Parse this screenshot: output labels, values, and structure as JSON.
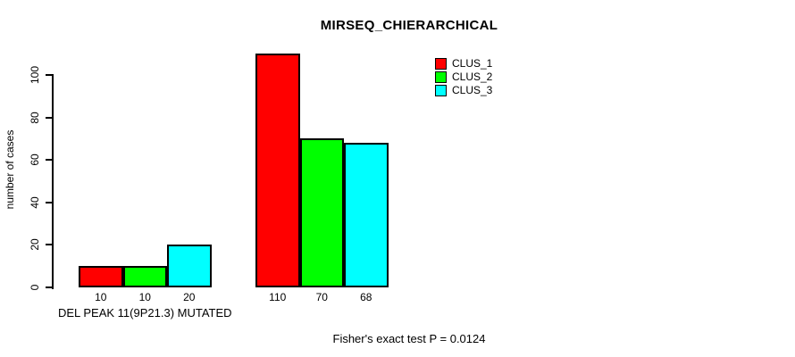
{
  "title": "MIRSEQ_CHIERARCHICAL",
  "chart_data": {
    "type": "bar",
    "categories": [
      "DEL PEAK 11(9P21.3) MUTATED",
      ""
    ],
    "series": [
      {
        "name": "CLUS_1",
        "color": "#FF0000",
        "values": [
          10,
          110
        ]
      },
      {
        "name": "CLUS_2",
        "color": "#00FF00",
        "values": [
          10,
          70
        ]
      },
      {
        "name": "CLUS_3",
        "color": "#00FFFF",
        "values": [
          20,
          68
        ]
      }
    ],
    "title": "MIRSEQ_CHIERARCHICAL",
    "xlabel": "",
    "ylabel": "number of cases",
    "yticks": [
      0,
      20,
      40,
      60,
      80,
      100
    ],
    "ylim": [
      0,
      115
    ],
    "bar_value_labels": [
      [
        "10",
        "110"
      ],
      [
        "10",
        "70"
      ],
      [
        "20",
        "68"
      ]
    ],
    "legend_position": "top-right",
    "grid": false
  },
  "annotations": {
    "footnote": "Fisher's exact test P = 0.0124"
  },
  "colors": {
    "background": "#FFFFFF",
    "axis": "#000000",
    "bar_border": "#000000",
    "text": "#000000",
    "clus_1": "#FF0000",
    "clus_2": "#00FF00",
    "clus_3": "#00FFFF"
  }
}
